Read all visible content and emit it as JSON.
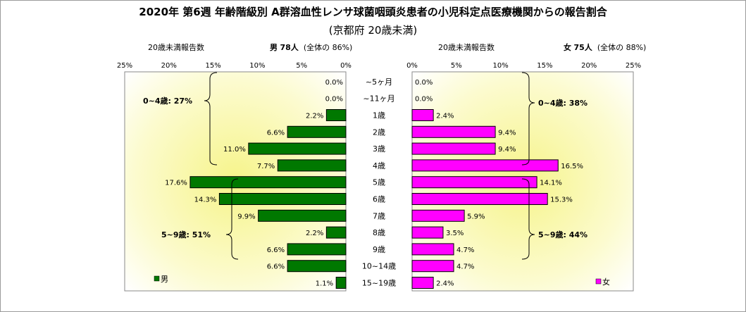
{
  "title": "2020年 第6週 年齢階級別 A群溶血性レンサ球菌咽頭炎患者の小児科定点医療機関からの報告割合",
  "subtitle": "(京都府 20歳未満)",
  "left_header": {
    "label": "20歳未満報告数",
    "sex": "男",
    "count": "78人",
    "share_prefix": "(全体の",
    "share_value": "86%)"
  },
  "right_header": {
    "label": "20歳未満報告数",
    "sex": "女",
    "count": "75人",
    "share_prefix": "(全体の",
    "share_value": "88%)"
  },
  "chart_data": {
    "type": "bar",
    "orientation": "horizontal-butterfly",
    "categories": [
      "~5ヶ月",
      "~11ヶ月",
      "1歳",
      "2歳",
      "3歳",
      "4歳",
      "5歳",
      "6歳",
      "7歳",
      "8歳",
      "9歳",
      "10~14歳",
      "15~19歳"
    ],
    "series": [
      {
        "name": "男",
        "side": "left",
        "color": "#007800",
        "values": [
          0.0,
          0.0,
          2.2,
          6.6,
          11.0,
          7.7,
          17.6,
          14.3,
          9.9,
          2.2,
          6.6,
          6.6,
          1.1
        ],
        "labels": [
          "0.0%",
          "0.0%",
          "2.2%",
          "6.6%",
          "11.0%",
          "7.7%",
          "17.6%",
          "14.3%",
          "9.9%",
          "2.2%",
          "6.6%",
          "6.6%",
          "1.1%"
        ]
      },
      {
        "name": "女",
        "side": "right",
        "color": "#ff00ff",
        "values": [
          0.0,
          0.0,
          2.4,
          9.4,
          9.4,
          16.5,
          14.1,
          15.3,
          5.9,
          3.5,
          4.7,
          4.7,
          2.4
        ],
        "labels": [
          "0.0%",
          "0.0%",
          "2.4%",
          "9.4%",
          "9.4%",
          "16.5%",
          "14.1%",
          "15.3%",
          "5.9%",
          "3.5%",
          "4.7%",
          "4.7%",
          "2.4%"
        ]
      }
    ],
    "xlim": [
      0,
      25
    ],
    "xticks_left": [
      "25%",
      "20%",
      "15%",
      "10%",
      "5%",
      "0%"
    ],
    "xticks_right": [
      "0%",
      "5%",
      "10%",
      "15%",
      "20%",
      "25%"
    ],
    "annotations": {
      "left_0_4": "0~4歳: 27%",
      "left_5_9": "5~9歳: 51%",
      "right_0_4": "0~4歳: 38%",
      "right_5_9": "5~9歳: 44%"
    },
    "legend_left": "男",
    "legend_right": "女",
    "plot_background": "yellow-to-white radial gradient"
  }
}
